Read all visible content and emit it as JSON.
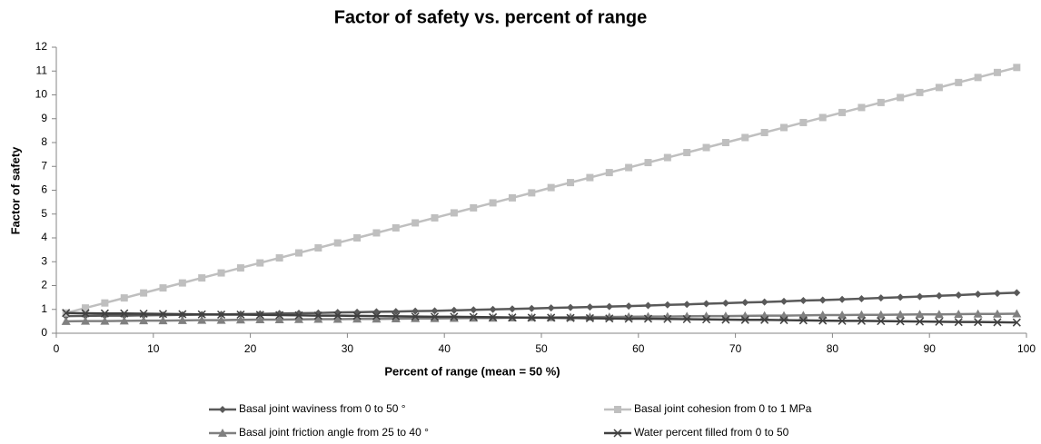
{
  "chart_data": {
    "type": "line",
    "title": "Factor of safety vs. percent of range",
    "xlabel": "Percent of range (mean = 50 %)",
    "ylabel": "Factor of safety",
    "x": [
      1,
      3,
      5,
      7,
      9,
      11,
      13,
      15,
      17,
      19,
      21,
      23,
      25,
      27,
      29,
      31,
      33,
      35,
      37,
      39,
      41,
      43,
      45,
      47,
      49,
      51,
      53,
      55,
      57,
      59,
      61,
      63,
      65,
      67,
      69,
      71,
      73,
      75,
      77,
      79,
      81,
      83,
      85,
      87,
      89,
      91,
      93,
      95,
      97,
      99
    ],
    "series": [
      {
        "name": "Basal joint waviness from 0 to 50 °",
        "color": "#595959",
        "marker": "diamond",
        "values": [
          0.72,
          0.73,
          0.74,
          0.74,
          0.75,
          0.76,
          0.77,
          0.78,
          0.79,
          0.8,
          0.81,
          0.83,
          0.84,
          0.85,
          0.87,
          0.88,
          0.9,
          0.91,
          0.93,
          0.94,
          0.96,
          0.98,
          1.0,
          1.02,
          1.04,
          1.06,
          1.08,
          1.1,
          1.12,
          1.14,
          1.16,
          1.19,
          1.21,
          1.24,
          1.26,
          1.29,
          1.31,
          1.34,
          1.37,
          1.39,
          1.42,
          1.45,
          1.48,
          1.51,
          1.54,
          1.57,
          1.6,
          1.64,
          1.67,
          1.7
        ]
      },
      {
        "name": "Basal joint cohesion from 0 to 1 MPa",
        "color": "#bfbfbf",
        "marker": "square",
        "values": [
          0.85,
          1.06,
          1.27,
          1.48,
          1.69,
          1.9,
          2.11,
          2.32,
          2.53,
          2.74,
          2.95,
          3.16,
          3.37,
          3.58,
          3.79,
          4.0,
          4.21,
          4.42,
          4.63,
          4.84,
          5.05,
          5.26,
          5.47,
          5.68,
          5.89,
          6.11,
          6.32,
          6.53,
          6.74,
          6.95,
          7.16,
          7.37,
          7.58,
          7.79,
          8.0,
          8.21,
          8.42,
          8.63,
          8.84,
          9.05,
          9.26,
          9.47,
          9.68,
          9.89,
          10.1,
          10.31,
          10.52,
          10.73,
          10.94,
          11.15
        ]
      },
      {
        "name": "Basal joint friction angle from 25 to 40 °",
        "color": "#808080",
        "marker": "triangle",
        "values": [
          0.5,
          0.51,
          0.51,
          0.52,
          0.53,
          0.53,
          0.54,
          0.55,
          0.55,
          0.56,
          0.57,
          0.57,
          0.58,
          0.59,
          0.59,
          0.6,
          0.6,
          0.61,
          0.62,
          0.62,
          0.63,
          0.64,
          0.64,
          0.65,
          0.66,
          0.66,
          0.67,
          0.68,
          0.68,
          0.69,
          0.7,
          0.7,
          0.71,
          0.72,
          0.72,
          0.73,
          0.74,
          0.74,
          0.75,
          0.76,
          0.76,
          0.77,
          0.77,
          0.78,
          0.79,
          0.79,
          0.8,
          0.81,
          0.81,
          0.82
        ]
      },
      {
        "name": "Water percent filled from 0 to 50",
        "color": "#404040",
        "marker": "x",
        "values": [
          0.85,
          0.84,
          0.83,
          0.83,
          0.82,
          0.81,
          0.8,
          0.79,
          0.78,
          0.78,
          0.77,
          0.76,
          0.75,
          0.74,
          0.74,
          0.73,
          0.72,
          0.71,
          0.7,
          0.69,
          0.69,
          0.68,
          0.67,
          0.66,
          0.65,
          0.65,
          0.64,
          0.63,
          0.62,
          0.61,
          0.61,
          0.6,
          0.59,
          0.58,
          0.57,
          0.56,
          0.56,
          0.55,
          0.54,
          0.53,
          0.52,
          0.52,
          0.51,
          0.5,
          0.49,
          0.48,
          0.47,
          0.47,
          0.46,
          0.45
        ]
      }
    ],
    "xlim": [
      0,
      100
    ],
    "xticks": [
      0,
      10,
      20,
      30,
      40,
      50,
      60,
      70,
      80,
      90,
      100
    ],
    "ylim": [
      0,
      12
    ],
    "yticks": [
      0,
      1,
      2,
      3,
      4,
      5,
      6,
      7,
      8,
      9,
      10,
      11,
      12
    ],
    "grid": false,
    "legend": "bottom"
  }
}
